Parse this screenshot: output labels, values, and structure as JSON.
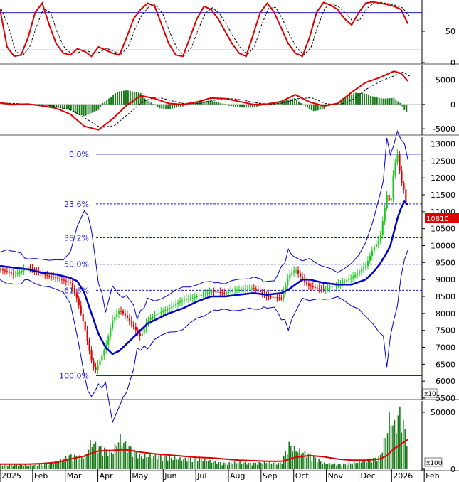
{
  "chart_data": [
    {
      "type": "line",
      "panel": "oscillator",
      "ylim": [
        0,
        100
      ],
      "y_ticks": [
        0,
        50
      ],
      "levels": [
        20,
        80
      ],
      "colors": {
        "main": "#dd0000",
        "signal": "#000000",
        "levels": "#1f1fd0"
      },
      "x": [
        0,
        10,
        20,
        30,
        40,
        50,
        60,
        70,
        80,
        90,
        100,
        110,
        120,
        130,
        140,
        150,
        160,
        170,
        180,
        190,
        200,
        210,
        220,
        230,
        240,
        250,
        260,
        270,
        280,
        290,
        300,
        310,
        320,
        330,
        340,
        350,
        360,
        370,
        380,
        390,
        400,
        410,
        420,
        430,
        440,
        450,
        460,
        470,
        480,
        490,
        500,
        510,
        520,
        530,
        540,
        550,
        560,
        570,
        580
      ],
      "series": [
        {
          "values": [
            85,
            25,
            10,
            12,
            40,
            80,
            95,
            60,
            30,
            15,
            12,
            22,
            18,
            10,
            25,
            20,
            15,
            12,
            40,
            70,
            85,
            95,
            90,
            60,
            30,
            12,
            10,
            40,
            70,
            90,
            85,
            70,
            50,
            30,
            15,
            10,
            45,
            80,
            95,
            80,
            55,
            30,
            15,
            10,
            40,
            80,
            96,
            92,
            85,
            70,
            60,
            80,
            95,
            97,
            95,
            93,
            90,
            85,
            62
          ]
        }
      ]
    },
    {
      "type": "line",
      "panel": "macd",
      "ylim": [
        -6000,
        8000
      ],
      "y_ticks": [
        -5000,
        0,
        5000
      ],
      "colors": {
        "macd": "#dd0000",
        "signal": "#000000",
        "hist_pos": "#1a7a1a",
        "hist_neg": "#1a7a1a"
      },
      "x": [
        0,
        20,
        40,
        60,
        80,
        100,
        120,
        140,
        160,
        180,
        200,
        220,
        240,
        260,
        280,
        300,
        320,
        340,
        360,
        380,
        400,
        420,
        440,
        460,
        480,
        500,
        520,
        540,
        560,
        570,
        580
      ],
      "series": [
        {
          "values": [
            300,
            0,
            100,
            -300,
            -800,
            -2000,
            -4500,
            -5200,
            -3000,
            -200,
            1800,
            1200,
            200,
            0,
            500,
            1300,
            1200,
            600,
            0,
            100,
            600,
            2000,
            500,
            -300,
            200,
            2500,
            4500,
            5500,
            6800,
            6400,
            4800
          ]
        }
      ]
    },
    {
      "type": "line",
      "panel": "price",
      "ylim": [
        5500,
        13200
      ],
      "y_ticks": [
        5500,
        6000,
        6500,
        7000,
        7500,
        8000,
        8500,
        9000,
        9500,
        10000,
        10500,
        11000,
        11500,
        12000,
        12500,
        13000
      ],
      "last_price_label": "10810",
      "multiplier_label": "x10",
      "fibonacci": [
        {
          "label": "0.0%",
          "value": 12700,
          "style": "solid"
        },
        {
          "label": "23.6%",
          "value": 11230,
          "style": "dashed"
        },
        {
          "label": "38.2%",
          "value": 10230,
          "style": "dashed"
        },
        {
          "label": "50.0%",
          "value": 9450,
          "style": "dashed"
        },
        {
          "label": "61.8%",
          "value": 8680,
          "style": "dashed"
        },
        {
          "label": "100.0%",
          "value": 6160,
          "style": "solid"
        }
      ],
      "colors": {
        "up": "#1ec81e",
        "down": "#dd0000",
        "ma": "#0000cc",
        "bands": "#0000cc",
        "fib": "#1f1fd0",
        "last_price_bg": "#dd0000"
      },
      "x": [
        0,
        20,
        40,
        60,
        80,
        100,
        110,
        120,
        130,
        135,
        140,
        150,
        160,
        170,
        180,
        190,
        200,
        210,
        220,
        240,
        260,
        280,
        300,
        320,
        340,
        360,
        380,
        400,
        410,
        420,
        430,
        440,
        460,
        480,
        500,
        520,
        530,
        540,
        550,
        555,
        560,
        565,
        570,
        575,
        580
      ],
      "series": [
        {
          "values": [
            9300,
            9150,
            9350,
            9150,
            9050,
            8900,
            8400,
            7600,
            6600,
            6300,
            6500,
            7000,
            7800,
            8100,
            7900,
            7600,
            7300,
            7800,
            7950,
            8150,
            8400,
            8500,
            8650,
            8600,
            8700,
            8750,
            8500,
            8450,
            9100,
            9300,
            9000,
            8800,
            8700,
            8850,
            9050,
            9400,
            9900,
            10200,
            11500,
            11200,
            12300,
            12700,
            11900,
            11600,
            10810
          ]
        },
        {
          "values": [
            9400,
            9350,
            9300,
            9200,
            9150,
            9050,
            8950,
            8600,
            8000,
            7700,
            7400,
            7000,
            6800,
            6900,
            7100,
            7300,
            7500,
            7700,
            7800,
            8000,
            8150,
            8350,
            8500,
            8500,
            8550,
            8600,
            8550,
            8600,
            8700,
            8850,
            9000,
            9000,
            8900,
            8850,
            8850,
            9000,
            9200,
            9450,
            9800,
            10000,
            10400,
            10800,
            11100,
            11300,
            11200
          ]
        }
      ]
    },
    {
      "type": "bar",
      "panel": "volume",
      "ylim": [
        0,
        60000
      ],
      "y_ticks": [
        0,
        50000
      ],
      "multiplier_label": "x100",
      "colors": {
        "bars": "#1a7a1a",
        "ma": "#dd0000"
      },
      "x": [
        0,
        20,
        40,
        60,
        80,
        100,
        120,
        130,
        140,
        160,
        170,
        180,
        200,
        220,
        240,
        260,
        280,
        300,
        320,
        340,
        360,
        380,
        400,
        410,
        420,
        440,
        460,
        480,
        500,
        520,
        540,
        550,
        555,
        560,
        570,
        575,
        580
      ],
      "series": [
        {
          "values": [
            4000,
            5000,
            4000,
            5000,
            7000,
            14000,
            12000,
            28000,
            22000,
            17000,
            32000,
            24000,
            13000,
            14000,
            12000,
            10000,
            12000,
            8000,
            6000,
            7000,
            6000,
            7000,
            6000,
            25000,
            20000,
            15000,
            6000,
            5000,
            6000,
            9000,
            12000,
            38000,
            55000,
            42000,
            60000,
            40000,
            30000
          ]
        },
        {
          "values": [
            4500,
            4500,
            4500,
            5000,
            6000,
            9000,
            11500,
            14000,
            16000,
            16500,
            17000,
            17000,
            15000,
            13500,
            12500,
            11500,
            10500,
            10000,
            9000,
            8000,
            7500,
            7000,
            7000,
            8500,
            10500,
            12000,
            11000,
            9000,
            8000,
            8000,
            9000,
            12000,
            15000,
            18000,
            22000,
            24000,
            26000
          ]
        }
      ]
    }
  ],
  "x_axis": {
    "month_labels": [
      "2025",
      "Feb",
      "Mar",
      "Apr",
      "May",
      "Jun",
      "Jul",
      "Aug",
      "Sep",
      "Oct",
      "Nov",
      "Dec",
      "2026",
      "Feb"
    ]
  }
}
